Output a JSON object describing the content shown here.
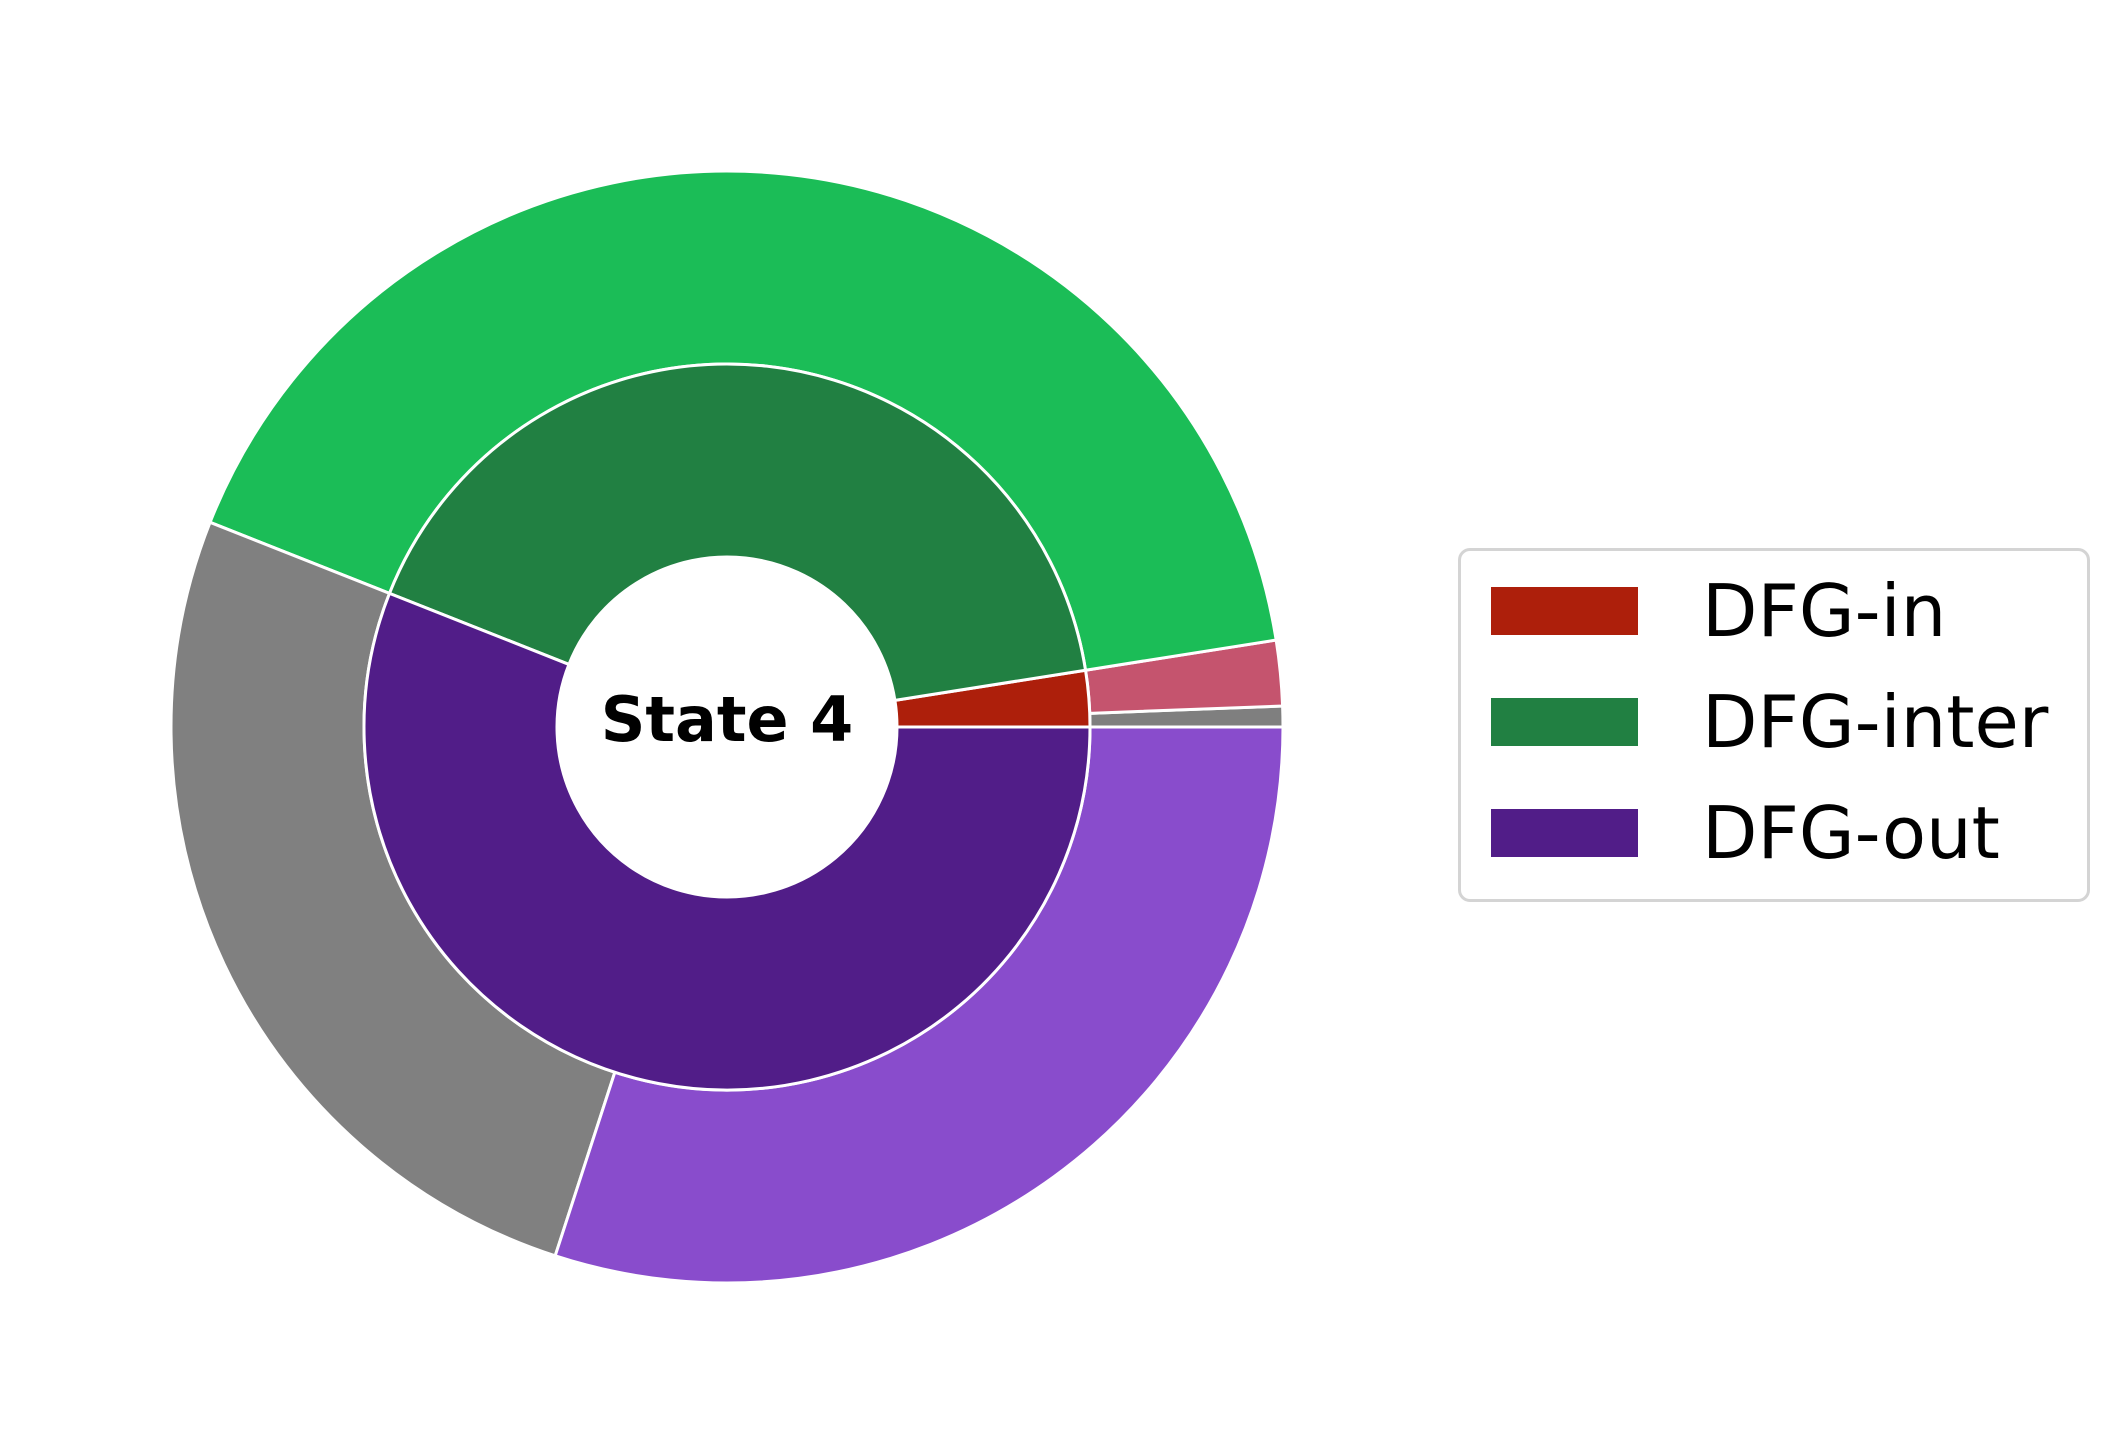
{
  "chart_data": {
    "type": "pie",
    "subtype": "nested donut",
    "center_label": "State 4",
    "inner_ring": [
      {
        "name": "DFG-in",
        "value": 2.5,
        "color": "#ad1f0b"
      },
      {
        "name": "DFG-inter",
        "value": 41.5,
        "color": "#218042"
      },
      {
        "name": "DFG-out",
        "value": 56.0,
        "color": "#511d88"
      }
    ],
    "outer_ring": [
      {
        "parent": "DFG-in",
        "value": 0.6,
        "color": "#7f7f7f"
      },
      {
        "parent": "DFG-in",
        "value": 1.9,
        "color": "#c5546e"
      },
      {
        "parent": "DFG-inter",
        "value": 41.5,
        "color": "#1bbd57"
      },
      {
        "parent": "DFG-out",
        "value": 26.0,
        "color": "#808080"
      },
      {
        "parent": "DFG-out",
        "value": 30.0,
        "color": "#894ccc"
      }
    ],
    "start_angle_deg": 0,
    "direction": "counterclockwise",
    "legend_position": "right",
    "legend": [
      {
        "label": "DFG-in",
        "color": "#ad1f0b"
      },
      {
        "label": "DFG-inter",
        "color": "#218042"
      },
      {
        "label": "DFG-out",
        "color": "#511d88"
      }
    ]
  }
}
